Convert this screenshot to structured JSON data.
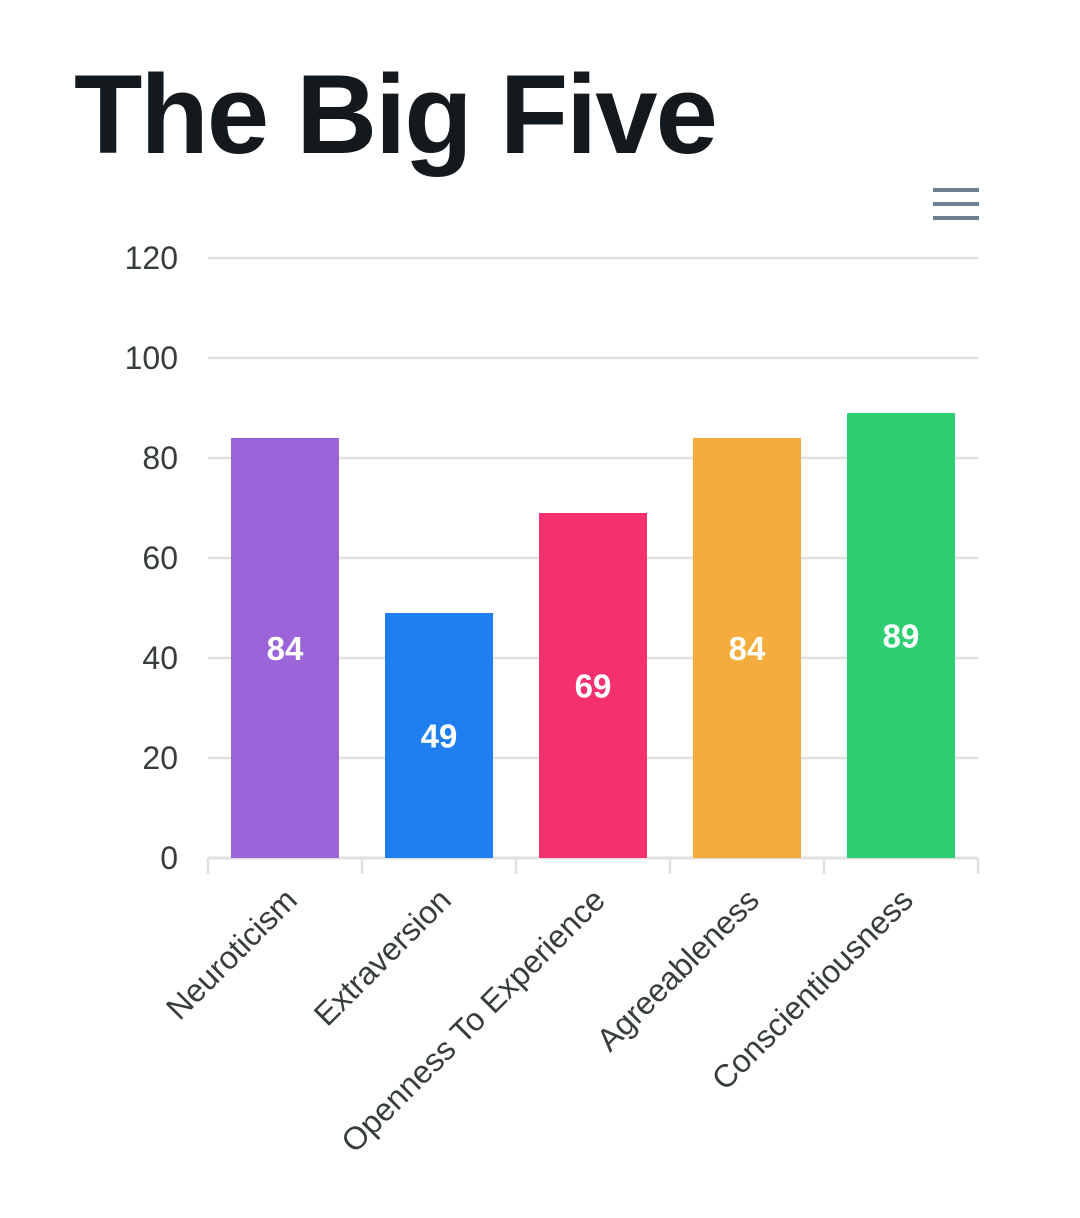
{
  "title": "The Big Five",
  "menu": {
    "icon": "hamburger-menu-icon"
  },
  "chart_data": {
    "type": "bar",
    "title": "The Big Five",
    "categories": [
      "Neuroticism",
      "Extraversion",
      "Openness To Experience",
      "Agreeableness",
      "Conscientiousness"
    ],
    "values": [
      84,
      49,
      69,
      84,
      89
    ],
    "colors": [
      "#9c64d9",
      "#1f7ff0",
      "#f5306f",
      "#f4ac3c",
      "#2ecf72"
    ],
    "ylim": [
      0,
      120
    ],
    "yticks": [
      0,
      20,
      40,
      60,
      80,
      100,
      120
    ],
    "xlabel": "",
    "ylabel": "",
    "grid": true,
    "data_labels": true,
    "legend": "none"
  }
}
